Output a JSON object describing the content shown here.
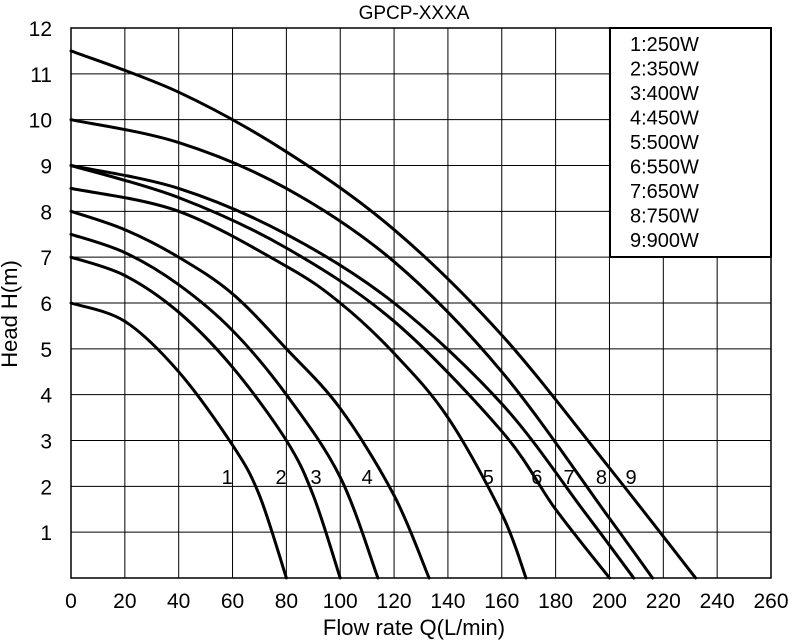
{
  "chart_data": {
    "type": "line",
    "title": "GPCP-XXXA",
    "xlabel": "Flow rate Q(L/min)",
    "ylabel": "Head H(m)",
    "xlim": [
      0,
      260
    ],
    "ylim": [
      0,
      12
    ],
    "x_ticks": [
      0,
      20,
      40,
      60,
      80,
      100,
      120,
      140,
      160,
      180,
      200,
      220,
      240,
      260
    ],
    "y_ticks": [
      1,
      2,
      3,
      4,
      5,
      6,
      7,
      8,
      9,
      10,
      11,
      12
    ],
    "grid": true,
    "legend_position": "top-right",
    "legend": [
      "1:250W",
      "2:350W",
      "3:400W",
      "4:450W",
      "5:500W",
      "6:550W",
      "7:650W",
      "8:750W",
      "9:900W"
    ],
    "series": [
      {
        "name": "1",
        "points": [
          [
            0,
            6.0
          ],
          [
            20,
            5.6
          ],
          [
            40,
            4.5
          ],
          [
            60,
            2.9
          ],
          [
            70,
            1.8
          ],
          [
            80,
            0
          ]
        ]
      },
      {
        "name": "2",
        "points": [
          [
            0,
            7.0
          ],
          [
            20,
            6.6
          ],
          [
            40,
            5.8
          ],
          [
            60,
            4.6
          ],
          [
            80,
            3.0
          ],
          [
            90,
            1.8
          ],
          [
            100,
            0
          ]
        ]
      },
      {
        "name": "3",
        "points": [
          [
            0,
            7.5
          ],
          [
            20,
            7.1
          ],
          [
            40,
            6.4
          ],
          [
            60,
            5.4
          ],
          [
            80,
            4.0
          ],
          [
            100,
            2.2
          ],
          [
            114,
            0
          ]
        ]
      },
      {
        "name": "4",
        "points": [
          [
            0,
            8.0
          ],
          [
            20,
            7.6
          ],
          [
            40,
            7.0
          ],
          [
            60,
            6.2
          ],
          [
            80,
            5.0
          ],
          [
            100,
            3.7
          ],
          [
            120,
            1.8
          ],
          [
            133,
            0
          ]
        ]
      },
      {
        "name": "5",
        "points": [
          [
            0,
            8.5
          ],
          [
            40,
            8.0
          ],
          [
            80,
            6.8
          ],
          [
            100,
            6.0
          ],
          [
            120,
            4.9
          ],
          [
            140,
            3.5
          ],
          [
            160,
            1.4
          ],
          [
            169,
            0
          ]
        ]
      },
      {
        "name": "6",
        "points": [
          [
            0,
            9.0
          ],
          [
            40,
            8.3
          ],
          [
            80,
            7.2
          ],
          [
            120,
            5.6
          ],
          [
            160,
            3.2
          ],
          [
            180,
            1.5
          ],
          [
            200,
            0
          ]
        ]
      },
      {
        "name": "7",
        "points": [
          [
            0,
            9.0
          ],
          [
            40,
            8.5
          ],
          [
            80,
            7.5
          ],
          [
            120,
            6.0
          ],
          [
            160,
            3.8
          ],
          [
            190,
            1.5
          ],
          [
            209,
            0
          ]
        ]
      },
      {
        "name": "8",
        "points": [
          [
            0,
            10.0
          ],
          [
            40,
            9.5
          ],
          [
            80,
            8.5
          ],
          [
            120,
            6.9
          ],
          [
            160,
            4.5
          ],
          [
            200,
            1.3
          ],
          [
            216,
            0
          ]
        ]
      },
      {
        "name": "9",
        "points": [
          [
            0,
            11.5
          ],
          [
            40,
            10.6
          ],
          [
            80,
            9.3
          ],
          [
            120,
            7.6
          ],
          [
            160,
            5.3
          ],
          [
            200,
            2.4
          ],
          [
            232,
            0
          ]
        ]
      }
    ],
    "curve_labels": [
      {
        "text": "1",
        "x": 58,
        "y": 2.2
      },
      {
        "text": "2",
        "x": 78,
        "y": 2.2
      },
      {
        "text": "3",
        "x": 91,
        "y": 2.2
      },
      {
        "text": "4",
        "x": 110,
        "y": 2.2
      },
      {
        "text": "5",
        "x": 155,
        "y": 2.2
      },
      {
        "text": "6",
        "x": 173,
        "y": 2.2
      },
      {
        "text": "7",
        "x": 185,
        "y": 2.2
      },
      {
        "text": "8",
        "x": 197,
        "y": 2.2
      },
      {
        "text": "9",
        "x": 208,
        "y": 2.2
      }
    ]
  }
}
